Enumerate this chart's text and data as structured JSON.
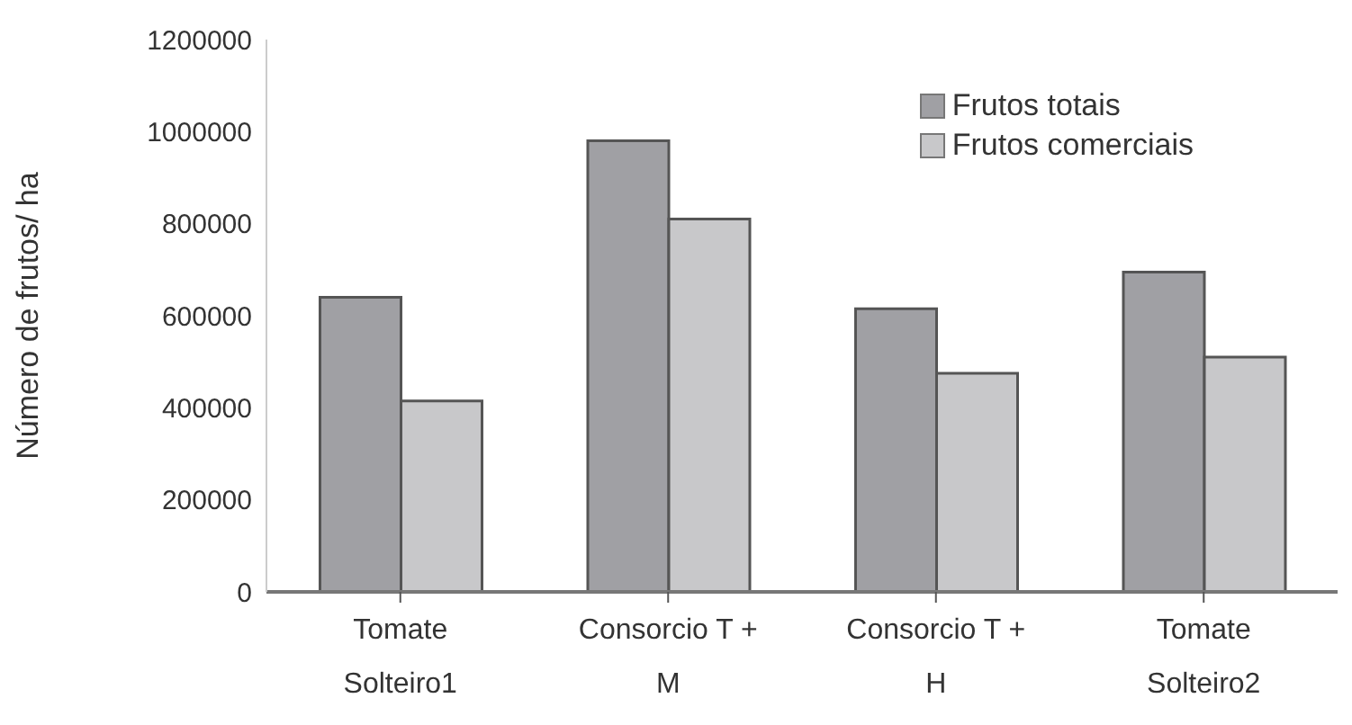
{
  "chart_data": {
    "type": "bar",
    "ylabel": "Número de frutos/ ha",
    "categories": [
      "Tomate Solteiro1",
      "Consorcio T + M",
      "Consorcio T + H",
      "Tomate Solteiro2"
    ],
    "series": [
      {
        "name": "Frutos totais",
        "color": "#a0a0a4",
        "values": [
          640000,
          980000,
          615000,
          695000
        ]
      },
      {
        "name": "Frutos comerciais",
        "color": "#c8c8ca",
        "values": [
          415000,
          810000,
          475000,
          510000
        ]
      }
    ],
    "ylim": [
      0,
      1200000
    ],
    "yticks": [
      0,
      200000,
      400000,
      600000,
      800000,
      1000000,
      1200000
    ],
    "grid": false,
    "legend": "top right"
  }
}
